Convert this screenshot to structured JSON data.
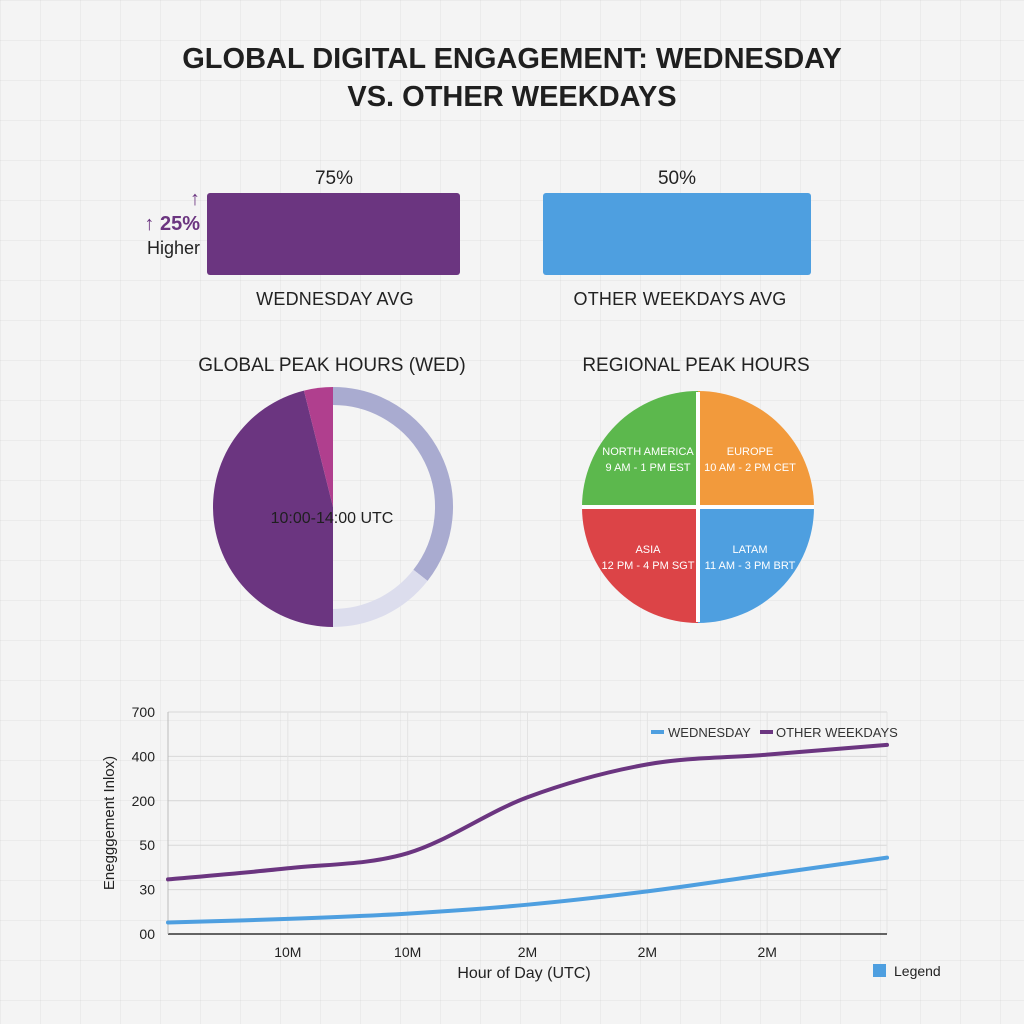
{
  "title": "GLOBAL DIGITAL ENGAGEMENT: WEDNESDAY\nVS. OTHER WEEKDAYS",
  "comparison": {
    "wednesday": {
      "value_label": "75%",
      "value": 75,
      "label": "WEDNESDAY AVG",
      "color": "#6b3580"
    },
    "others": {
      "value_label": "50%",
      "value": 50,
      "label": "OTHER WEEKDAYS AVG",
      "color": "#4e9fe0"
    },
    "delta": {
      "arrow": "↑",
      "value": "↑ 25%",
      "text": "Higher",
      "color": "#6b3580"
    }
  },
  "peak_global": {
    "title": "GLOBAL PEAK HOURS (WED)",
    "center_label": "10:00-14:00 UTC",
    "colors": {
      "main": "#6b3580",
      "accent": "#b03f8e",
      "ring_dark": "#a9abd0",
      "ring_light": "#dcdded"
    }
  },
  "peak_regional": {
    "title": "REGIONAL PEAK HOURS",
    "regions": [
      {
        "name": "NORTH AMERICA",
        "hours": "9 AM - 1 PM EST",
        "color": "#5cb84d"
      },
      {
        "name": "EUROPE",
        "hours": "10 AM - 2 PM CET",
        "color": "#f29a3c"
      },
      {
        "name": "ASIA",
        "hours": "12 PM - 4 PM SGT",
        "color": "#dc4447"
      },
      {
        "name": "LATAM",
        "hours": "11 AM - 3 PM BRT",
        "color": "#4e9fe0"
      }
    ]
  },
  "chart_data": {
    "type": "line",
    "xlabel": "Hour of Day (UTC)",
    "ylabel": "Enegggement Inlox)",
    "y_tick_labels": [
      "700",
      "400",
      "200",
      "50",
      "30",
      "00"
    ],
    "x_tick_labels": [
      "10M",
      "10M",
      "2M",
      "2M",
      "2M"
    ],
    "x": [
      0,
      1,
      2,
      3,
      4,
      5,
      6
    ],
    "series": [
      {
        "name": "WEDNESDAY",
        "color": "#4e9fe0",
        "values": [
          0.26,
          0.34,
          0.46,
          0.66,
          0.96,
          1.34,
          1.72
        ]
      },
      {
        "name": "OTHER WEEKDAYS",
        "color": "#6b3580",
        "values": [
          1.23,
          1.48,
          1.82,
          3.08,
          3.82,
          4.04,
          4.26
        ]
      }
    ],
    "grid": true,
    "legend_position": "top-right",
    "extra_legend": {
      "label": "Legend",
      "color": "#4e9fe0"
    }
  }
}
